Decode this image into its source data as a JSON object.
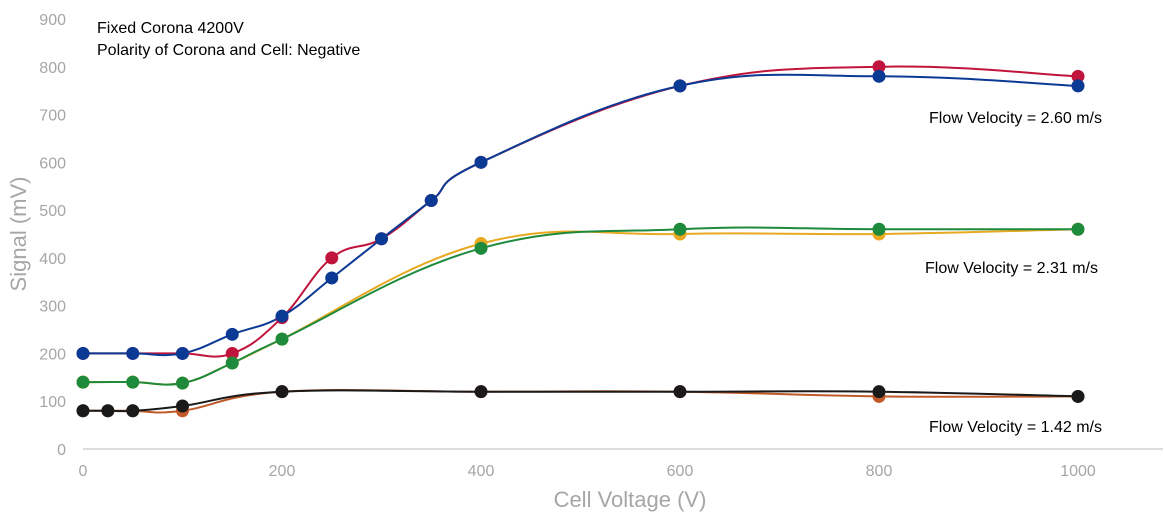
{
  "chart_data": {
    "type": "line",
    "title": "",
    "xlabel": "Cell Voltage (V)",
    "ylabel": "Signal (mV)",
    "xlim": [
      0,
      1150
    ],
    "ylim": [
      0,
      900
    ],
    "x_ticks": [
      "0",
      "200",
      "400",
      "600",
      "800",
      "1000"
    ],
    "y_ticks": [
      "0",
      "100",
      "200",
      "300",
      "400",
      "500",
      "600",
      "700",
      "800",
      "900"
    ],
    "grid": false,
    "annotations": [
      "Fixed Corona 4200V",
      "Polarity of Corona and Cell: Negative",
      "Flow Velocity = 2.60 m/s",
      "Flow Velocity = 2.31 m/s",
      "Flow Velocity = 1.42 m/s"
    ],
    "series": [
      {
        "color": "#c0143c",
        "points": [
          [
            0,
            200
          ],
          [
            50,
            200
          ],
          [
            100,
            200
          ],
          [
            150,
            200
          ],
          [
            200,
            275
          ],
          [
            250,
            400
          ],
          [
            300,
            440
          ],
          [
            350,
            520
          ],
          [
            400,
            600
          ],
          [
            600,
            760
          ],
          [
            800,
            800
          ],
          [
            1000,
            780
          ]
        ]
      },
      {
        "color": "#0b3a94",
        "points": [
          [
            0,
            200
          ],
          [
            50,
            200
          ],
          [
            100,
            200
          ],
          [
            150,
            240
          ],
          [
            200,
            278
          ],
          [
            250,
            358
          ],
          [
            300,
            440
          ],
          [
            350,
            520
          ],
          [
            400,
            600
          ],
          [
            600,
            760
          ],
          [
            800,
            780
          ],
          [
            1000,
            760
          ]
        ]
      },
      {
        "color": "#e8a820",
        "points": [
          [
            0,
            140
          ],
          [
            50,
            140
          ],
          [
            100,
            138
          ],
          [
            150,
            180
          ],
          [
            200,
            230
          ],
          [
            400,
            430
          ],
          [
            600,
            450
          ],
          [
            800,
            450
          ],
          [
            1000,
            460
          ]
        ]
      },
      {
        "color": "#1e8a3c",
        "points": [
          [
            0,
            140
          ],
          [
            50,
            140
          ],
          [
            100,
            138
          ],
          [
            150,
            180
          ],
          [
            200,
            230
          ],
          [
            400,
            420
          ],
          [
            600,
            460
          ],
          [
            800,
            460
          ],
          [
            1000,
            460
          ]
        ]
      },
      {
        "color": "#c05a28",
        "points": [
          [
            0,
            80
          ],
          [
            25,
            80
          ],
          [
            50,
            80
          ],
          [
            100,
            80
          ],
          [
            200,
            120
          ],
          [
            400,
            120
          ],
          [
            600,
            120
          ],
          [
            800,
            110
          ],
          [
            1000,
            110
          ]
        ]
      },
      {
        "color": "#1a1a1a",
        "points": [
          [
            0,
            80
          ],
          [
            25,
            80
          ],
          [
            50,
            80
          ],
          [
            100,
            90
          ],
          [
            200,
            120
          ],
          [
            400,
            120
          ],
          [
            600,
            120
          ],
          [
            800,
            120
          ],
          [
            1000,
            110
          ]
        ]
      }
    ]
  }
}
